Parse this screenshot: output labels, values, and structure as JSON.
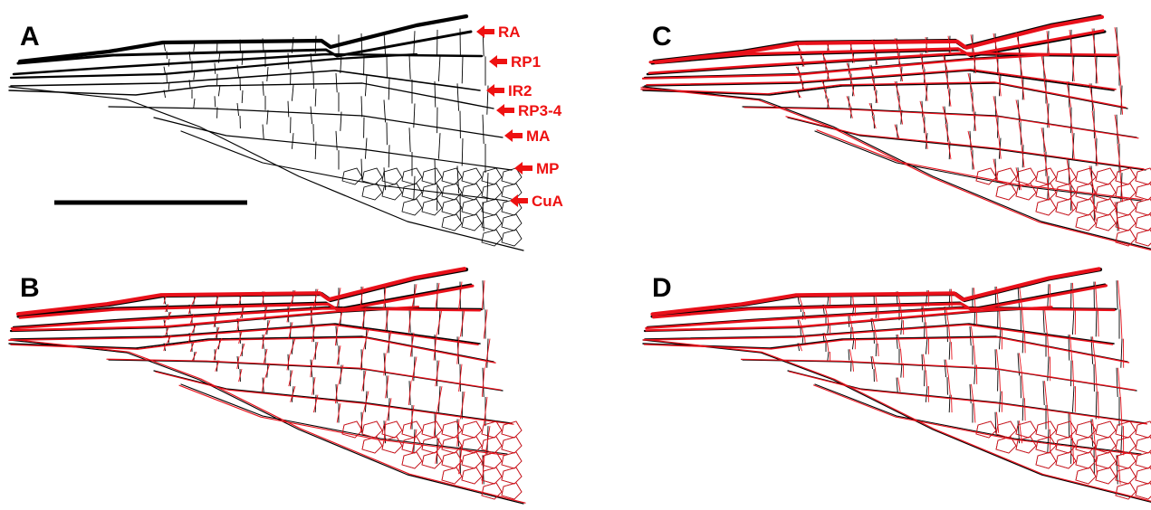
{
  "panels": [
    {
      "letter": "A"
    },
    {
      "letter": "B"
    },
    {
      "letter": "C"
    },
    {
      "letter": "D"
    }
  ],
  "vein_labels": [
    "RA",
    "RP1",
    "IR2",
    "RP3-4",
    "MA",
    "MP",
    "CuA"
  ],
  "colors": {
    "background": "#ffffff",
    "black_venation": "#000000",
    "red_venation": "#e8101a",
    "label": "#ee1111",
    "scale_bar": "#000000"
  }
}
